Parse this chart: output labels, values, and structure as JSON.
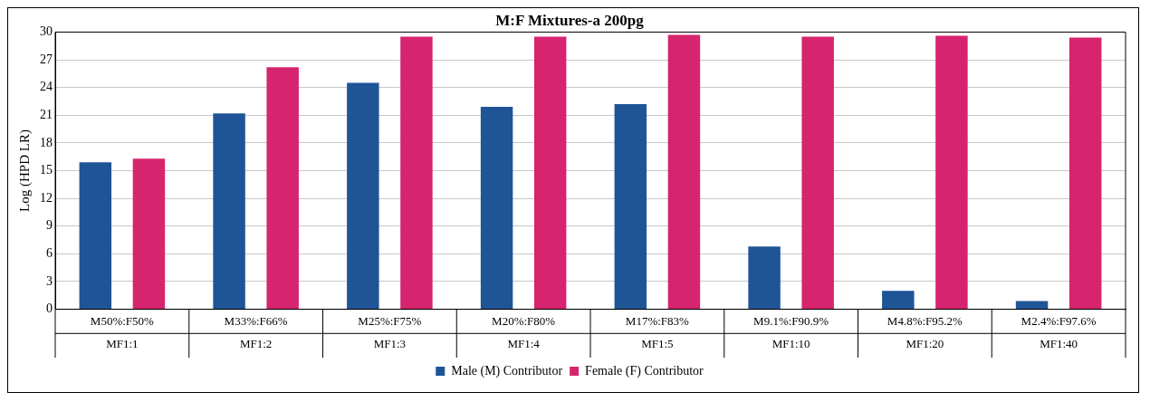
{
  "chart_data": {
    "type": "bar",
    "title": "M:F Mixtures-a 200pg",
    "ylabel": "Log (HPD LR)",
    "categories": [
      "M50%:F50%\nMF1:1",
      "M33%:F66%\nMF1:2",
      "M25%:F75%\nMF1:3",
      "M20%:F80%\nMF1:4",
      "M17%:F83%\nMF1:5",
      "M9.1%:F90.9%\nMF1:10",
      "M4.8%:F95.2%\nMF1:20",
      "M2.4%:F97.6%\nMF1:40"
    ],
    "series": [
      {
        "name": "Male (M) Contributor",
        "color": "#1f5597",
        "values": [
          15.9,
          21.2,
          24.5,
          21.9,
          22.2,
          6.8,
          2.0,
          0.9
        ]
      },
      {
        "name": "Female (F) Contributor",
        "color": "#d6246e",
        "values": [
          16.3,
          26.2,
          29.5,
          29.5,
          29.7,
          29.5,
          29.6,
          29.4
        ]
      }
    ],
    "ylim": [
      0,
      30
    ],
    "yticks": [
      0,
      3,
      6,
      9,
      12,
      15,
      18,
      21,
      24,
      27,
      30
    ],
    "grid": "y",
    "legend": "bottom"
  }
}
